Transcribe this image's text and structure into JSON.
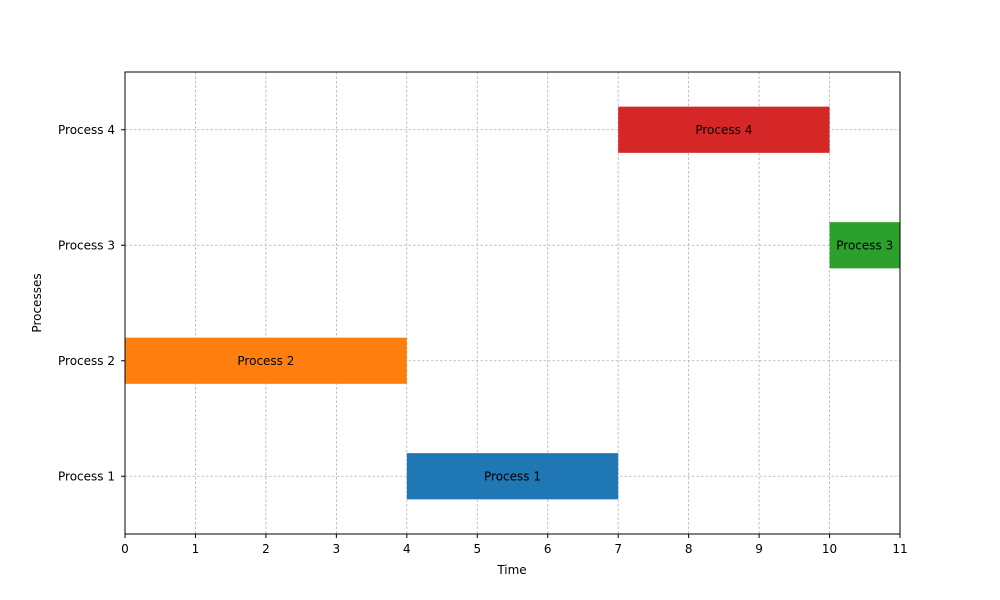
{
  "chart_data": {
    "type": "bar",
    "orientation": "horizontal",
    "title": "",
    "xlabel": "Time",
    "ylabel": "Processes",
    "xlim": [
      0,
      11
    ],
    "x_ticks": [
      0,
      1,
      2,
      3,
      4,
      5,
      6,
      7,
      8,
      9,
      10,
      11
    ],
    "categories": [
      "Process 1",
      "Process 2",
      "Process 3",
      "Process 4"
    ],
    "grid": true,
    "tasks": [
      {
        "label": "Process 1",
        "start": 4,
        "end": 7,
        "color": "#1f77b4"
      },
      {
        "label": "Process 2",
        "start": 0,
        "end": 4,
        "color": "#ff7f0e"
      },
      {
        "label": "Process 3",
        "start": 10,
        "end": 11,
        "color": "#2ca02c"
      },
      {
        "label": "Process 4",
        "start": 7,
        "end": 10,
        "color": "#d62728"
      }
    ]
  }
}
